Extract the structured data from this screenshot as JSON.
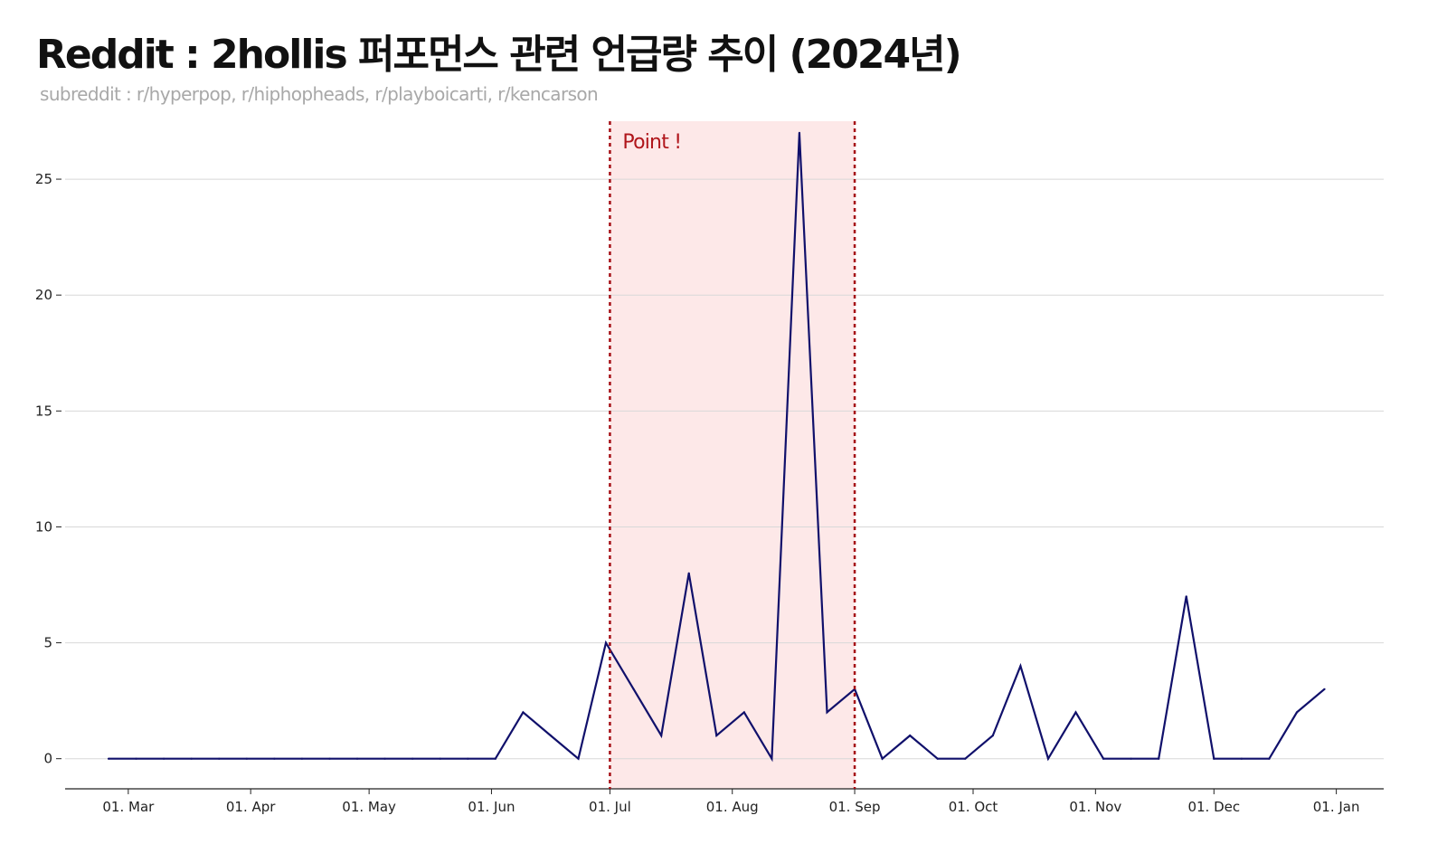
{
  "chart_data": {
    "type": "line",
    "title": "Reddit : 2hollis 퍼포먼스 관련 언급량 추이 (2024년)",
    "subtitle": "subreddit : r/hyperpop, r/hiphopheads, r/playboicarti, r/kencarson",
    "xlabel": "",
    "ylabel": "",
    "ylim": [
      -1.3,
      27.5
    ],
    "yticks": [
      0,
      5,
      10,
      15,
      20,
      25
    ],
    "xlim": [
      "2024-02-14",
      "2025-01-13"
    ],
    "xticks": [
      {
        "date": "2024-03-01",
        "label": "01. Mar"
      },
      {
        "date": "2024-04-01",
        "label": "01. Apr"
      },
      {
        "date": "2024-05-01",
        "label": "01. May"
      },
      {
        "date": "2024-06-01",
        "label": "01. Jun"
      },
      {
        "date": "2024-07-01",
        "label": "01. Jul"
      },
      {
        "date": "2024-08-01",
        "label": "01. Aug"
      },
      {
        "date": "2024-09-01",
        "label": "01. Sep"
      },
      {
        "date": "2024-10-01",
        "label": "01. Oct"
      },
      {
        "date": "2024-11-01",
        "label": "01. Nov"
      },
      {
        "date": "2024-12-01",
        "label": "01. Dec"
      },
      {
        "date": "2025-01-01",
        "label": "01. Jan"
      }
    ],
    "grid": "horizontal",
    "series": [
      {
        "color": "#10106b",
        "x": [
          "2024-02-25",
          "2024-03-03",
          "2024-03-10",
          "2024-03-17",
          "2024-03-24",
          "2024-03-31",
          "2024-04-07",
          "2024-04-14",
          "2024-04-21",
          "2024-04-28",
          "2024-05-05",
          "2024-05-12",
          "2024-05-19",
          "2024-05-26",
          "2024-06-02",
          "2024-06-09",
          "2024-06-16",
          "2024-06-23",
          "2024-06-30",
          "2024-07-07",
          "2024-07-14",
          "2024-07-21",
          "2024-07-28",
          "2024-08-04",
          "2024-08-11",
          "2024-08-18",
          "2024-08-25",
          "2024-09-01",
          "2024-09-08",
          "2024-09-15",
          "2024-09-22",
          "2024-09-29",
          "2024-10-06",
          "2024-10-13",
          "2024-10-20",
          "2024-10-27",
          "2024-11-03",
          "2024-11-10",
          "2024-11-17",
          "2024-11-24",
          "2024-12-01",
          "2024-12-08",
          "2024-12-15",
          "2024-12-22",
          "2024-12-29"
        ],
        "values": [
          0,
          0,
          0,
          0,
          0,
          0,
          0,
          0,
          0,
          0,
          0,
          0,
          0,
          0,
          0,
          2,
          1,
          0,
          5,
          3,
          1,
          8,
          1,
          2,
          0,
          27,
          2,
          3,
          0,
          1,
          0,
          0,
          1,
          4,
          0,
          2,
          0,
          0,
          0,
          7,
          0,
          0,
          0,
          2,
          3
        ]
      }
    ],
    "highlight": {
      "start": "2024-07-01",
      "end": "2024-09-01",
      "label": "Point !",
      "fill": "#fde8e8",
      "line_color": "#a50f15"
    }
  }
}
